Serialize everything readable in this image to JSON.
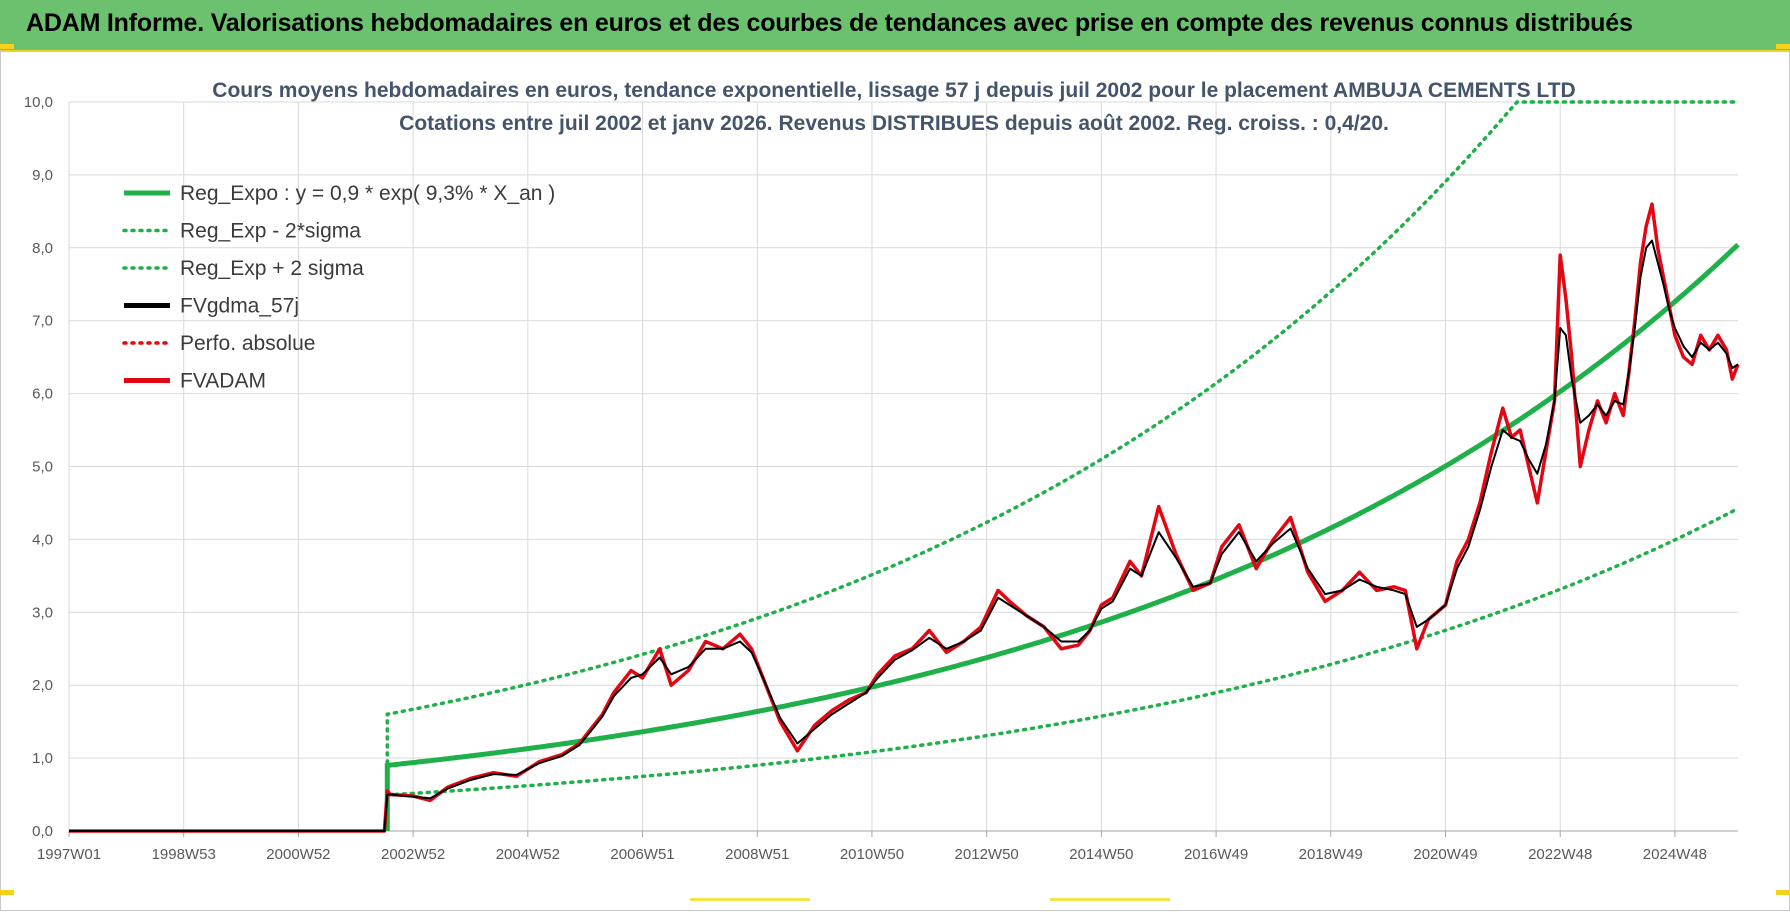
{
  "header": {
    "title": "ADAM Informe. Valorisations hebdomadaires en euros et des courbes de tendances avec prise en compte des revenus connus distribués"
  },
  "colors": {
    "banner": "#6cc16e",
    "reg": "#1fb04a",
    "black": "#000000",
    "red": "#e30613"
  },
  "chart_data": {
    "type": "line",
    "title": "Cours moyens hebdomadaires en euros, tendance exponentielle, lissage 57 j depuis juil 2002 pour le placement AMBUJA CEMENTS LTD",
    "subtitle": "Cotations entre juil 2002 et janv 2026. Revenus DISTRIBUES depuis août 2002. Reg. croiss. : 0,4/20.",
    "xlabel": "",
    "ylabel": "",
    "ylim": [
      0,
      10
    ],
    "yticks": [
      "0,0",
      "1,0",
      "2,0",
      "3,0",
      "4,0",
      "5,0",
      "6,0",
      "7,0",
      "8,0",
      "9,0",
      "10,0"
    ],
    "xlim": [
      1997.0,
      2026.1
    ],
    "xticks": [
      {
        "label": "1997W01",
        "t": 1997.0
      },
      {
        "label": "1998W53",
        "t": 1999.0
      },
      {
        "label": "2000W52",
        "t": 2001.0
      },
      {
        "label": "2002W52",
        "t": 2003.0
      },
      {
        "label": "2004W52",
        "t": 2005.0
      },
      {
        "label": "2006W51",
        "t": 2007.0
      },
      {
        "label": "2008W51",
        "t": 2009.0
      },
      {
        "label": "2010W50",
        "t": 2011.0
      },
      {
        "label": "2012W50",
        "t": 2013.0
      },
      {
        "label": "2014W50",
        "t": 2015.0
      },
      {
        "label": "2016W49",
        "t": 2017.0
      },
      {
        "label": "2018W49",
        "t": 2019.0
      },
      {
        "label": "2020W49",
        "t": 2021.0
      },
      {
        "label": "2022W48",
        "t": 2023.0
      },
      {
        "label": "2024W48",
        "t": 2025.0
      }
    ],
    "legend": [
      {
        "label": "Reg_Expo : y = 0,9 * exp( 9,3% *  X_an )",
        "color": "#1fb04a",
        "style": "solid"
      },
      {
        "label": "Reg_Exp - 2*sigma",
        "color": "#1fb04a",
        "style": "dotted"
      },
      {
        "label": "Reg_Exp + 2 sigma",
        "color": "#1fb04a",
        "style": "dotted"
      },
      {
        "label": "FVgdma_57j",
        "color": "#000000",
        "style": "solid"
      },
      {
        "label": "Perfo. absolue",
        "color": "#e30613",
        "style": "dotted"
      },
      {
        "label": "FVADAM",
        "color": "#e30613",
        "style": "solid"
      }
    ],
    "regression": {
      "a": 0.9,
      "rate": 0.093,
      "start": 2002.55,
      "end": 2026.1,
      "lower_factor": 0.55,
      "upper_factor": 1.78,
      "upper_cap": 10.0
    },
    "series": [
      {
        "name": "FVADAM",
        "t": [
          1997.0,
          2002.5,
          2002.55,
          2002.6,
          2003.0,
          2003.3,
          2003.6,
          2004.0,
          2004.4,
          2004.8,
          2005.2,
          2005.6,
          2005.9,
          2006.1,
          2006.3,
          2006.5,
          2006.8,
          2007.0,
          2007.3,
          2007.5,
          2007.8,
          2008.1,
          2008.4,
          2008.7,
          2008.9,
          2009.1,
          2009.4,
          2009.7,
          2010.0,
          2010.3,
          2010.6,
          2010.9,
          2011.1,
          2011.4,
          2011.7,
          2012.0,
          2012.3,
          2012.6,
          2012.9,
          2013.2,
          2013.4,
          2013.7,
          2014.0,
          2014.3,
          2014.6,
          2014.8,
          2015.0,
          2015.2,
          2015.5,
          2015.7,
          2016.0,
          2016.3,
          2016.6,
          2016.9,
          2017.1,
          2017.4,
          2017.7,
          2018.0,
          2018.3,
          2018.6,
          2018.9,
          2019.2,
          2019.5,
          2019.8,
          2020.1,
          2020.3,
          2020.5,
          2020.7,
          2021.0,
          2021.2,
          2021.4,
          2021.6,
          2021.8,
          2022.0,
          2022.15,
          2022.3,
          2022.45,
          2022.6,
          2022.75,
          2022.9,
          2023.0,
          2023.1,
          2023.2,
          2023.35,
          2023.5,
          2023.65,
          2023.8,
          2023.95,
          2024.1,
          2024.2,
          2024.3,
          2024.4,
          2024.5,
          2024.6,
          2024.7,
          2024.8,
          2024.9,
          2025.0,
          2025.15,
          2025.3,
          2025.45,
          2025.6,
          2025.75,
          2025.9,
          2026.0,
          2026.1
        ],
        "values": [
          0.0,
          0.0,
          0.55,
          0.5,
          0.48,
          0.42,
          0.6,
          0.72,
          0.8,
          0.75,
          0.95,
          1.05,
          1.2,
          1.4,
          1.6,
          1.9,
          2.2,
          2.1,
          2.5,
          2.0,
          2.2,
          2.6,
          2.5,
          2.7,
          2.5,
          2.1,
          1.5,
          1.1,
          1.45,
          1.65,
          1.8,
          1.9,
          2.15,
          2.4,
          2.5,
          2.75,
          2.45,
          2.6,
          2.8,
          3.3,
          3.15,
          2.95,
          2.8,
          2.5,
          2.55,
          2.75,
          3.1,
          3.2,
          3.7,
          3.5,
          4.45,
          3.8,
          3.3,
          3.4,
          3.9,
          4.2,
          3.6,
          4.0,
          4.3,
          3.55,
          3.15,
          3.3,
          3.55,
          3.3,
          3.35,
          3.3,
          2.5,
          2.9,
          3.1,
          3.7,
          4.0,
          4.5,
          5.2,
          5.8,
          5.4,
          5.5,
          5.0,
          4.5,
          5.2,
          5.9,
          7.9,
          7.3,
          6.5,
          5.0,
          5.5,
          5.9,
          5.6,
          6.0,
          5.7,
          6.3,
          7.0,
          7.8,
          8.3,
          8.6,
          8.0,
          7.6,
          7.2,
          6.8,
          6.5,
          6.4,
          6.8,
          6.6,
          6.8,
          6.6,
          6.2,
          6.4
        ],
        "color": "#e30613"
      },
      {
        "name": "FVgdma_57j",
        "t": [
          1997.0,
          2002.5,
          2002.55,
          2002.6,
          2003.0,
          2003.3,
          2003.6,
          2004.0,
          2004.4,
          2004.8,
          2005.2,
          2005.6,
          2005.9,
          2006.1,
          2006.3,
          2006.5,
          2006.8,
          2007.0,
          2007.3,
          2007.5,
          2007.8,
          2008.1,
          2008.4,
          2008.7,
          2008.9,
          2009.1,
          2009.4,
          2009.7,
          2010.0,
          2010.3,
          2010.6,
          2010.9,
          2011.1,
          2011.4,
          2011.7,
          2012.0,
          2012.3,
          2012.6,
          2012.9,
          2013.2,
          2013.4,
          2013.7,
          2014.0,
          2014.3,
          2014.6,
          2014.8,
          2015.0,
          2015.2,
          2015.5,
          2015.7,
          2016.0,
          2016.3,
          2016.6,
          2016.9,
          2017.1,
          2017.4,
          2017.7,
          2018.0,
          2018.3,
          2018.6,
          2018.9,
          2019.2,
          2019.5,
          2019.8,
          2020.1,
          2020.3,
          2020.5,
          2020.7,
          2021.0,
          2021.2,
          2021.4,
          2021.6,
          2021.8,
          2022.0,
          2022.15,
          2022.3,
          2022.45,
          2022.6,
          2022.75,
          2022.9,
          2023.0,
          2023.1,
          2023.2,
          2023.35,
          2023.5,
          2023.65,
          2023.8,
          2023.95,
          2024.1,
          2024.2,
          2024.3,
          2024.4,
          2024.5,
          2024.6,
          2024.7,
          2024.8,
          2024.9,
          2025.0,
          2025.15,
          2025.3,
          2025.45,
          2025.6,
          2025.75,
          2025.9,
          2026.0,
          2026.1
        ],
        "values": [
          0.0,
          0.0,
          0.5,
          0.5,
          0.47,
          0.45,
          0.58,
          0.7,
          0.78,
          0.77,
          0.93,
          1.03,
          1.18,
          1.37,
          1.57,
          1.85,
          2.1,
          2.15,
          2.38,
          2.15,
          2.25,
          2.5,
          2.5,
          2.6,
          2.45,
          2.1,
          1.55,
          1.2,
          1.4,
          1.6,
          1.75,
          1.9,
          2.1,
          2.35,
          2.48,
          2.65,
          2.5,
          2.6,
          2.75,
          3.2,
          3.1,
          2.95,
          2.8,
          2.6,
          2.6,
          2.75,
          3.05,
          3.15,
          3.6,
          3.5,
          4.1,
          3.75,
          3.35,
          3.4,
          3.8,
          4.1,
          3.7,
          3.95,
          4.15,
          3.6,
          3.25,
          3.3,
          3.45,
          3.35,
          3.3,
          3.25,
          2.8,
          2.9,
          3.1,
          3.6,
          3.9,
          4.4,
          5.0,
          5.5,
          5.4,
          5.35,
          5.1,
          4.9,
          5.3,
          5.9,
          6.9,
          6.8,
          6.2,
          5.6,
          5.7,
          5.85,
          5.7,
          5.9,
          5.85,
          6.3,
          6.9,
          7.6,
          8.0,
          8.1,
          7.8,
          7.5,
          7.15,
          6.9,
          6.65,
          6.5,
          6.7,
          6.6,
          6.7,
          6.55,
          6.35,
          6.4
        ],
        "color": "#000000"
      }
    ]
  }
}
